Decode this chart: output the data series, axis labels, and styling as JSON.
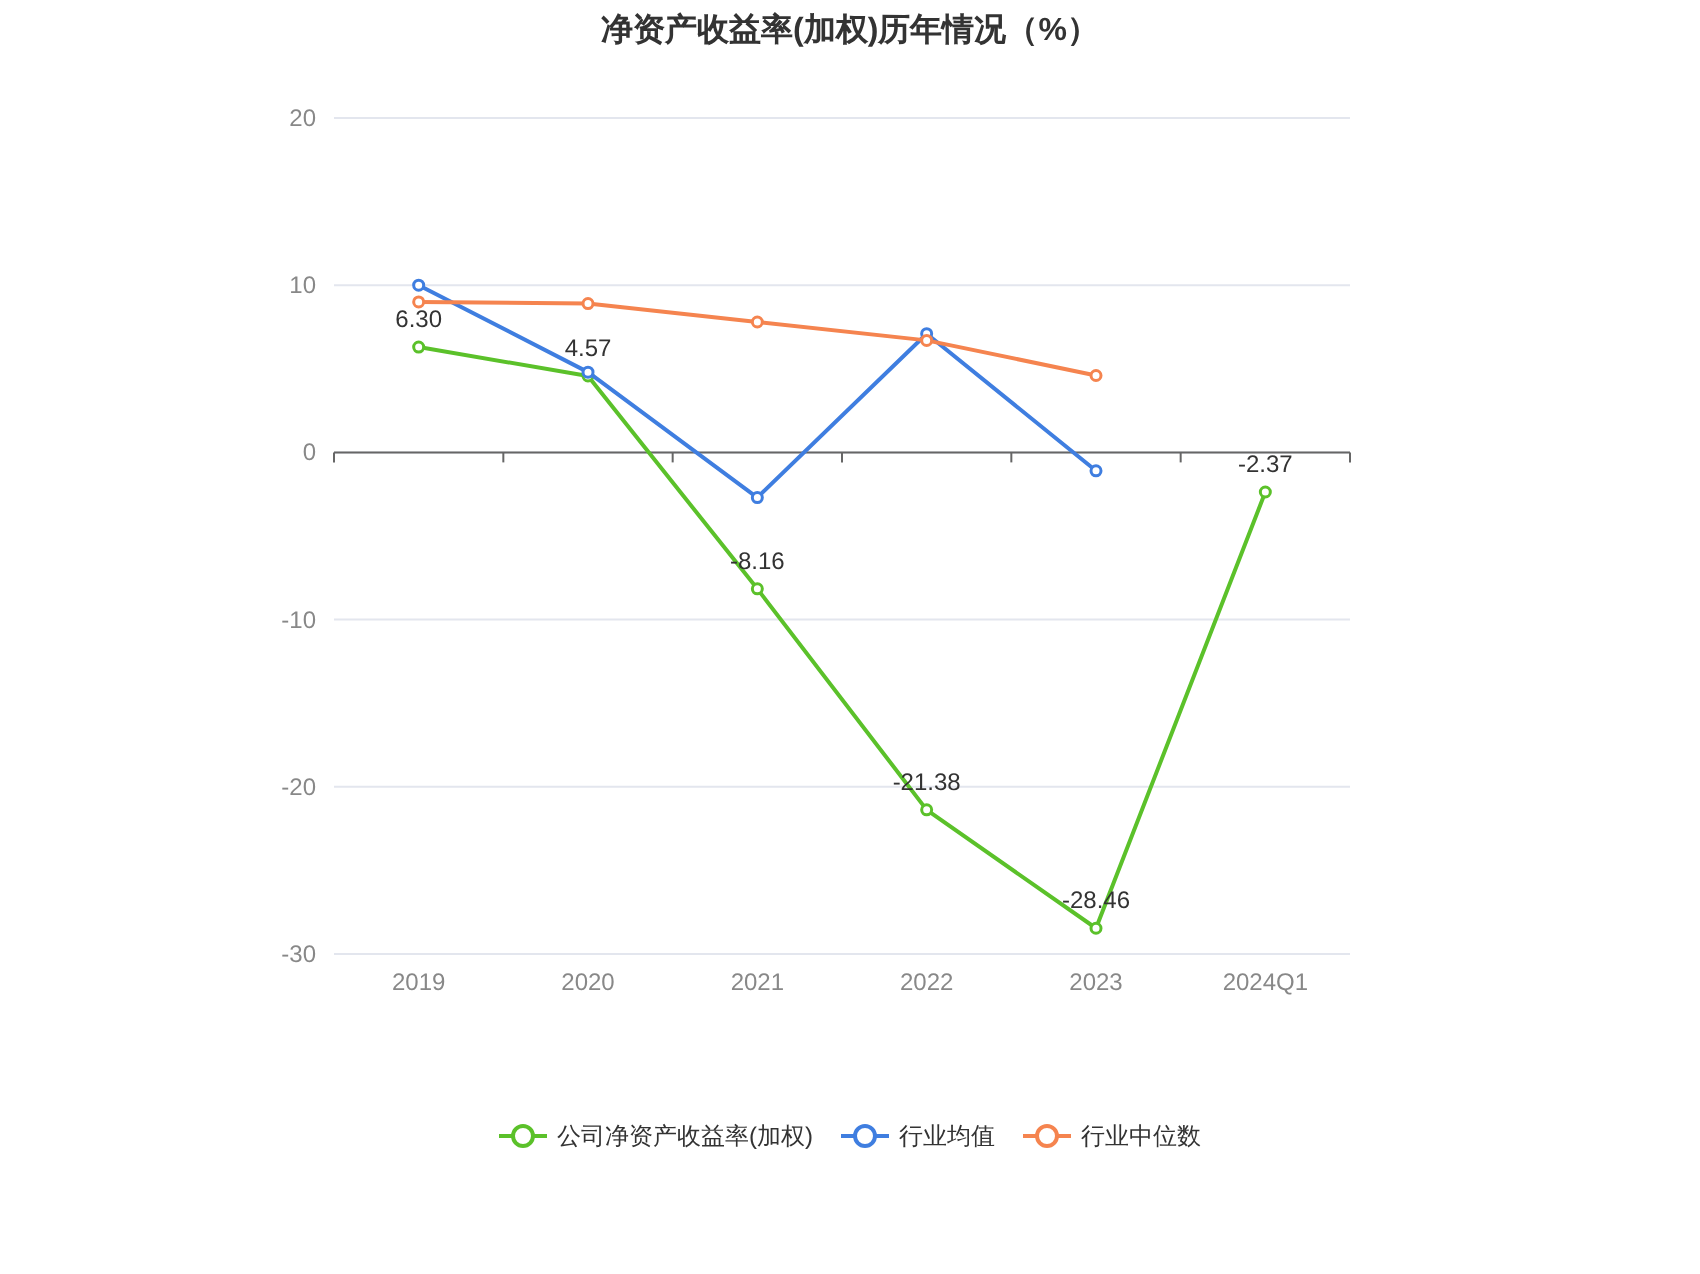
{
  "chart_data": {
    "type": "line",
    "title": "净资产收益率(加权)历年情况（%）",
    "categories": [
      "2019",
      "2020",
      "2021",
      "2022",
      "2023",
      "2024Q1"
    ],
    "series": [
      {
        "name": "公司净资产收益率(加权)",
        "color": "#5bc12a",
        "values": [
          6.3,
          4.57,
          -8.16,
          -21.38,
          -28.46,
          -2.37
        ],
        "value_labels": [
          "6.30",
          "4.57",
          "-8.16",
          "-21.38",
          "-28.46",
          "-2.37"
        ]
      },
      {
        "name": "行业均值",
        "color": "#3f7ee0",
        "values": [
          10.0,
          4.8,
          -2.7,
          7.1,
          -1.1,
          null
        ]
      },
      {
        "name": "行业中位数",
        "color": "#f5844f",
        "values": [
          9.0,
          8.9,
          7.8,
          6.7,
          4.6,
          null
        ]
      }
    ],
    "ylim": [
      -30,
      20
    ],
    "yticks": [
      -30,
      -20,
      -10,
      0,
      10,
      20
    ],
    "grid": "y",
    "legend": "bottom",
    "marker": "circle"
  }
}
